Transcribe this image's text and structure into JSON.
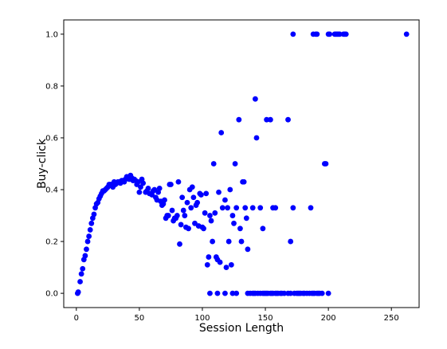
{
  "chart_data": {
    "type": "scatter",
    "title": "",
    "xlabel": "Session Length",
    "ylabel": "Buy-click",
    "xlim": [
      -10,
      272
    ],
    "ylim": [
      -0.055,
      1.055
    ],
    "x_ticks": [
      0,
      50,
      100,
      150,
      200,
      250
    ],
    "x_tick_labels": [
      "0",
      "50",
      "100",
      "150",
      "200",
      "250"
    ],
    "y_ticks": [
      0.0,
      0.2,
      0.4,
      0.6,
      0.8,
      1.0
    ],
    "y_tick_labels": [
      "0.0",
      "0.2",
      "0.4",
      "0.6",
      "0.8",
      "1.0"
    ],
    "grid": false,
    "legend": false,
    "marker_color": "#0000ff",
    "series": [
      {
        "points": [
          [
            1,
            0.0
          ],
          [
            1.5,
            0.005
          ],
          [
            3,
            0.045
          ],
          [
            4,
            0.075
          ],
          [
            5,
            0.095
          ],
          [
            6,
            0.13
          ],
          [
            7,
            0.145
          ],
          [
            8,
            0.17
          ],
          [
            9,
            0.2
          ],
          [
            10,
            0.22
          ],
          [
            11,
            0.245
          ],
          [
            12,
            0.27
          ],
          [
            13,
            0.29
          ],
          [
            14,
            0.305
          ],
          [
            15,
            0.33
          ],
          [
            16,
            0.345
          ],
          [
            17,
            0.35
          ],
          [
            18,
            0.365
          ],
          [
            19,
            0.375
          ],
          [
            20,
            0.385
          ],
          [
            21,
            0.395
          ],
          [
            22,
            0.395
          ],
          [
            23,
            0.4
          ],
          [
            24,
            0.405
          ],
          [
            25,
            0.41
          ],
          [
            26,
            0.42
          ],
          [
            27,
            0.42
          ],
          [
            28,
            0.42
          ],
          [
            29,
            0.41
          ],
          [
            30,
            0.43
          ],
          [
            31,
            0.42
          ],
          [
            32,
            0.425
          ],
          [
            33,
            0.43
          ],
          [
            34,
            0.43
          ],
          [
            35,
            0.425
          ],
          [
            36,
            0.435
          ],
          [
            37,
            0.435
          ],
          [
            38,
            0.43
          ],
          [
            39,
            0.44
          ],
          [
            40,
            0.45
          ],
          [
            41,
            0.445
          ],
          [
            42,
            0.44
          ],
          [
            43,
            0.455
          ],
          [
            44,
            0.445
          ],
          [
            45,
            0.435
          ],
          [
            46,
            0.44
          ],
          [
            47,
            0.435
          ],
          [
            48,
            0.42
          ],
          [
            49,
            0.43
          ],
          [
            50,
            0.39
          ],
          [
            51,
            0.41
          ],
          [
            52,
            0.44
          ],
          [
            53,
            0.425
          ],
          [
            55,
            0.39
          ],
          [
            56,
            0.395
          ],
          [
            57,
            0.405
          ],
          [
            58,
            0.385
          ],
          [
            60,
            0.38
          ],
          [
            61,
            0.395
          ],
          [
            62,
            0.4
          ],
          [
            63,
            0.37
          ],
          [
            64,
            0.36
          ],
          [
            65,
            0.39
          ],
          [
            66,
            0.405
          ],
          [
            67,
            0.355
          ],
          [
            68,
            0.34
          ],
          [
            69,
            0.345
          ],
          [
            70,
            0.36
          ],
          [
            71,
            0.29
          ],
          [
            72,
            0.3
          ],
          [
            73,
            0.3
          ],
          [
            74,
            0.42
          ],
          [
            75,
            0.42
          ],
          [
            76,
            0.32
          ],
          [
            77,
            0.28
          ],
          [
            78,
            0.29
          ],
          [
            79,
            0.29
          ],
          [
            80,
            0.3
          ],
          [
            81,
            0.43
          ],
          [
            82,
            0.19
          ],
          [
            83,
            0.265
          ],
          [
            84,
            0.37
          ],
          [
            85,
            0.32
          ],
          [
            86,
            0.3
          ],
          [
            87,
            0.255
          ],
          [
            88,
            0.35
          ],
          [
            89,
            0.25
          ],
          [
            90,
            0.4
          ],
          [
            91,
            0.33
          ],
          [
            92,
            0.41
          ],
          [
            93,
            0.37
          ],
          [
            94,
            0.27
          ],
          [
            95,
            0.34
          ],
          [
            96,
            0.35
          ],
          [
            97,
            0.26
          ],
          [
            98,
            0.385
          ],
          [
            99,
            0.38
          ],
          [
            100,
            0.255
          ],
          [
            101,
            0.25
          ],
          [
            102,
            0.31
          ],
          [
            103,
            0.385
          ],
          [
            104,
            0.11
          ],
          [
            105,
            0.14
          ],
          [
            106,
            0.3
          ],
          [
            107,
            0.28
          ],
          [
            108,
            0.2
          ],
          [
            109,
            0.5
          ],
          [
            110,
            0.31
          ],
          [
            111,
            0.14
          ],
          [
            112,
            0.13
          ],
          [
            113,
            0.39
          ],
          [
            114,
            0.12
          ],
          [
            115,
            0.62
          ],
          [
            116,
            0.33
          ],
          [
            118,
            0.36
          ],
          [
            119,
            0.1
          ],
          [
            120,
            0.33
          ],
          [
            121,
            0.2
          ],
          [
            122,
            0.4
          ],
          [
            123,
            0.11
          ],
          [
            124,
            0.3
          ],
          [
            125,
            0.27
          ],
          [
            126,
            0.5
          ],
          [
            127,
            0.33
          ],
          [
            129,
            0.67
          ],
          [
            130,
            0.25
          ],
          [
            131,
            0.2
          ],
          [
            132,
            0.43
          ],
          [
            133,
            0.43
          ],
          [
            134,
            0.33
          ],
          [
            135,
            0.29
          ],
          [
            136,
            0.17
          ],
          [
            140,
            0.33
          ],
          [
            142,
            0.75
          ],
          [
            143,
            0.6
          ],
          [
            146,
            0.33
          ],
          [
            148,
            0.25
          ],
          [
            151,
            0.67
          ],
          [
            154,
            0.67
          ],
          [
            156,
            0.33
          ],
          [
            158,
            0.33
          ],
          [
            168,
            0.67
          ],
          [
            170,
            0.2
          ],
          [
            172,
            0.33
          ],
          [
            186,
            0.33
          ],
          [
            197,
            0.5
          ],
          [
            198,
            0.5
          ],
          [
            106,
            0.0
          ],
          [
            112,
            0.0
          ],
          [
            118,
            0.0
          ],
          [
            124,
            0.0
          ],
          [
            127,
            0.0
          ],
          [
            136,
            0.0
          ],
          [
            138,
            0.0
          ],
          [
            140,
            0.0
          ],
          [
            141,
            0.0
          ],
          [
            142,
            0.0
          ],
          [
            144,
            0.0
          ],
          [
            146,
            0.0
          ],
          [
            148,
            0.0
          ],
          [
            149,
            0.0
          ],
          [
            150,
            0.0
          ],
          [
            151,
            0.0
          ],
          [
            152,
            0.0
          ],
          [
            154,
            0.0
          ],
          [
            155,
            0.0
          ],
          [
            156,
            0.0
          ],
          [
            158,
            0.0
          ],
          [
            159,
            0.0
          ],
          [
            160,
            0.0
          ],
          [
            162,
            0.0
          ],
          [
            163,
            0.0
          ],
          [
            165,
            0.0
          ],
          [
            168,
            0.0
          ],
          [
            170,
            0.0
          ],
          [
            173,
            0.0
          ],
          [
            175,
            0.0
          ],
          [
            176,
            0.0
          ],
          [
            177,
            0.0
          ],
          [
            178,
            0.0
          ],
          [
            180,
            0.0
          ],
          [
            181,
            0.0
          ],
          [
            183,
            0.0
          ],
          [
            185,
            0.0
          ],
          [
            187,
            0.0
          ],
          [
            188,
            0.0
          ],
          [
            189,
            0.0
          ],
          [
            191,
            0.0
          ],
          [
            192,
            0.0
          ],
          [
            193,
            0.0
          ],
          [
            195,
            0.0
          ],
          [
            200,
            0.0
          ],
          [
            172,
            1.0
          ],
          [
            188,
            1.0
          ],
          [
            190,
            1.0
          ],
          [
            191,
            1.0
          ],
          [
            200,
            1.0
          ],
          [
            201,
            1.0
          ],
          [
            205,
            1.0
          ],
          [
            206,
            1.0
          ],
          [
            207,
            1.0
          ],
          [
            208,
            1.0
          ],
          [
            209,
            1.0
          ],
          [
            212,
            1.0
          ],
          [
            213,
            1.0
          ],
          [
            214,
            1.0
          ],
          [
            262,
            1.0
          ]
        ]
      }
    ]
  }
}
